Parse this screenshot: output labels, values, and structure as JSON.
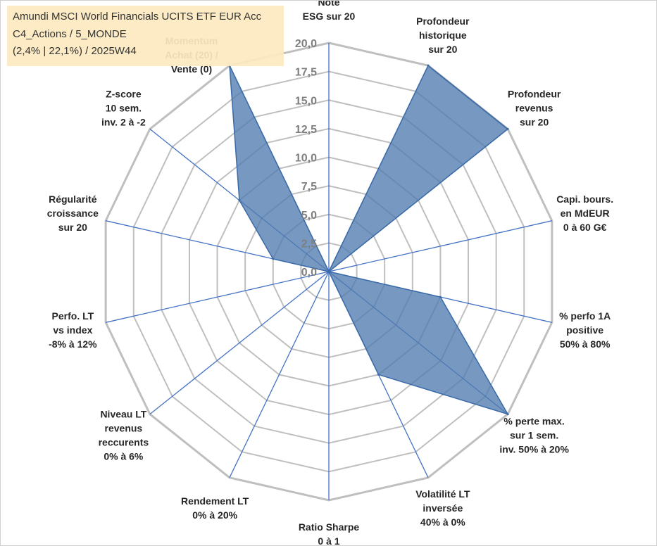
{
  "title": {
    "line1": "Amundi MSCI World Financials UCITS ETF EUR Acc",
    "line2": "C4_Actions / 5_MONDE",
    "line3": "(2,4% | 22,1%) / 2025W44"
  },
  "chart_data": {
    "type": "radar",
    "r_min": 0,
    "r_max": 20,
    "tick_labels": [
      "0,0",
      "2,5",
      "5,0",
      "7,5",
      "10,0",
      "12,5",
      "15,0",
      "17,5",
      "20,0"
    ],
    "axes": [
      {
        "lines": [
          "Note",
          "ESG sur 20"
        ],
        "value": 0
      },
      {
        "lines": [
          "Profondeur",
          "historique",
          "sur 20"
        ],
        "value": 20
      },
      {
        "lines": [
          "Profondeur",
          "revenus",
          "sur 20"
        ],
        "value": 20
      },
      {
        "lines": [
          "Capi. bours.",
          "en MdEUR",
          "0 à 60 G€"
        ],
        "value": 0
      },
      {
        "lines": [
          "% perfo 1A",
          "positive",
          "50% à 80%"
        ],
        "value": 10
      },
      {
        "lines": [
          "% perte max.",
          "sur 1 sem.",
          "inv. 50% à 20%"
        ],
        "value": 20
      },
      {
        "lines": [
          "Volatilité LT",
          "inversée",
          "40% à 0%"
        ],
        "value": 10
      },
      {
        "lines": [
          "Ratio Sharpe",
          "0 à 1"
        ],
        "value": 0
      },
      {
        "lines": [
          "Rendement LT",
          "0% à 20%"
        ],
        "value": 0
      },
      {
        "lines": [
          "Niveau LT",
          "revenus",
          "reccurents",
          "0% à 6%"
        ],
        "value": 0
      },
      {
        "lines": [
          "Perfo. LT",
          "vs index",
          "-8% à 12%"
        ],
        "value": 0
      },
      {
        "lines": [
          "Régularité",
          "croissance",
          "sur 20"
        ],
        "value": 5
      },
      {
        "lines": [
          "Z-score",
          "10 sem.",
          "inv. 2 à -2"
        ],
        "value": 10
      },
      {
        "lines": [
          "Momentum",
          "Achat (20) /",
          "Vente (0)"
        ],
        "value": 20
      }
    ],
    "fill_color": "#4f7bb0",
    "line_color": "#4472c4",
    "grid_color": "#bfbfbf"
  }
}
